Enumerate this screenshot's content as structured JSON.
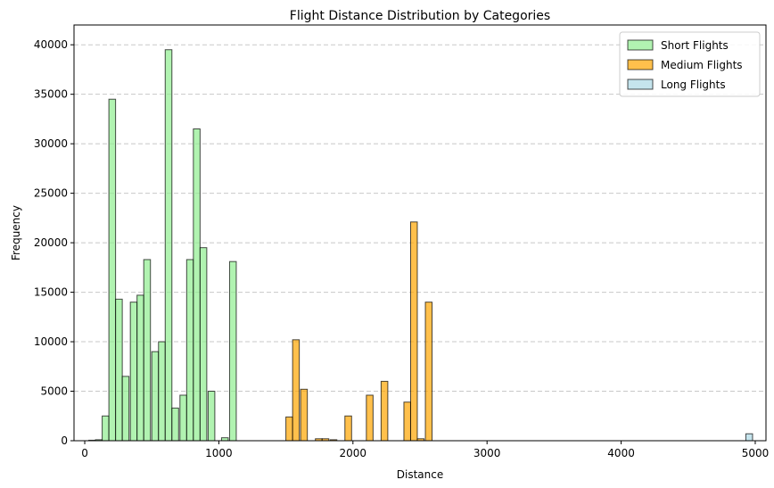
{
  "chart_data": {
    "type": "bar",
    "title": "Flight Distance Distribution by Categories",
    "xlabel": "Distance",
    "ylabel": "Frequency",
    "xlim": [
      -80,
      5080
    ],
    "ylim": [
      0,
      42000
    ],
    "xticks": [
      0,
      1000,
      2000,
      3000,
      4000,
      5000
    ],
    "yticks": [
      0,
      5000,
      10000,
      15000,
      20000,
      25000,
      30000,
      35000,
      40000
    ],
    "grid": "y-dashed",
    "legend_position": "top-right",
    "bin_width": 50,
    "series": [
      {
        "name": "Short Flights",
        "color": "#90ee90",
        "edge_color": "#000000",
        "alpha": 0.7,
        "bins": [
          {
            "x": 30,
            "value": 50
          },
          {
            "x": 80,
            "value": 100
          },
          {
            "x": 130,
            "value": 2500
          },
          {
            "x": 180,
            "value": 34500
          },
          {
            "x": 230,
            "value": 14300
          },
          {
            "x": 280,
            "value": 6500
          },
          {
            "x": 340,
            "value": 14000
          },
          {
            "x": 390,
            "value": 14700
          },
          {
            "x": 440,
            "value": 18300
          },
          {
            "x": 500,
            "value": 9000
          },
          {
            "x": 550,
            "value": 10000
          },
          {
            "x": 600,
            "value": 39500
          },
          {
            "x": 650,
            "value": 3300
          },
          {
            "x": 710,
            "value": 4600
          },
          {
            "x": 760,
            "value": 18300
          },
          {
            "x": 810,
            "value": 31500
          },
          {
            "x": 860,
            "value": 19500
          },
          {
            "x": 920,
            "value": 5000
          },
          {
            "x": 1020,
            "value": 300
          },
          {
            "x": 1080,
            "value": 18100
          }
        ]
      },
      {
        "name": "Medium Flights",
        "color": "#ffa500",
        "edge_color": "#000000",
        "alpha": 0.7,
        "bins": [
          {
            "x": 1500,
            "value": 2400
          },
          {
            "x": 1550,
            "value": 10200
          },
          {
            "x": 1610,
            "value": 5200
          },
          {
            "x": 1720,
            "value": 200
          },
          {
            "x": 1770,
            "value": 200
          },
          {
            "x": 1830,
            "value": 100
          },
          {
            "x": 1940,
            "value": 2500
          },
          {
            "x": 2100,
            "value": 4600
          },
          {
            "x": 2210,
            "value": 6000
          },
          {
            "x": 2380,
            "value": 3900
          },
          {
            "x": 2430,
            "value": 22100
          },
          {
            "x": 2480,
            "value": 200
          },
          {
            "x": 2540,
            "value": 14000
          }
        ]
      },
      {
        "name": "Long Flights",
        "color": "#add8e6",
        "edge_color": "#000000",
        "alpha": 0.7,
        "bins": [
          {
            "x": 4930,
            "value": 700
          }
        ]
      }
    ]
  }
}
